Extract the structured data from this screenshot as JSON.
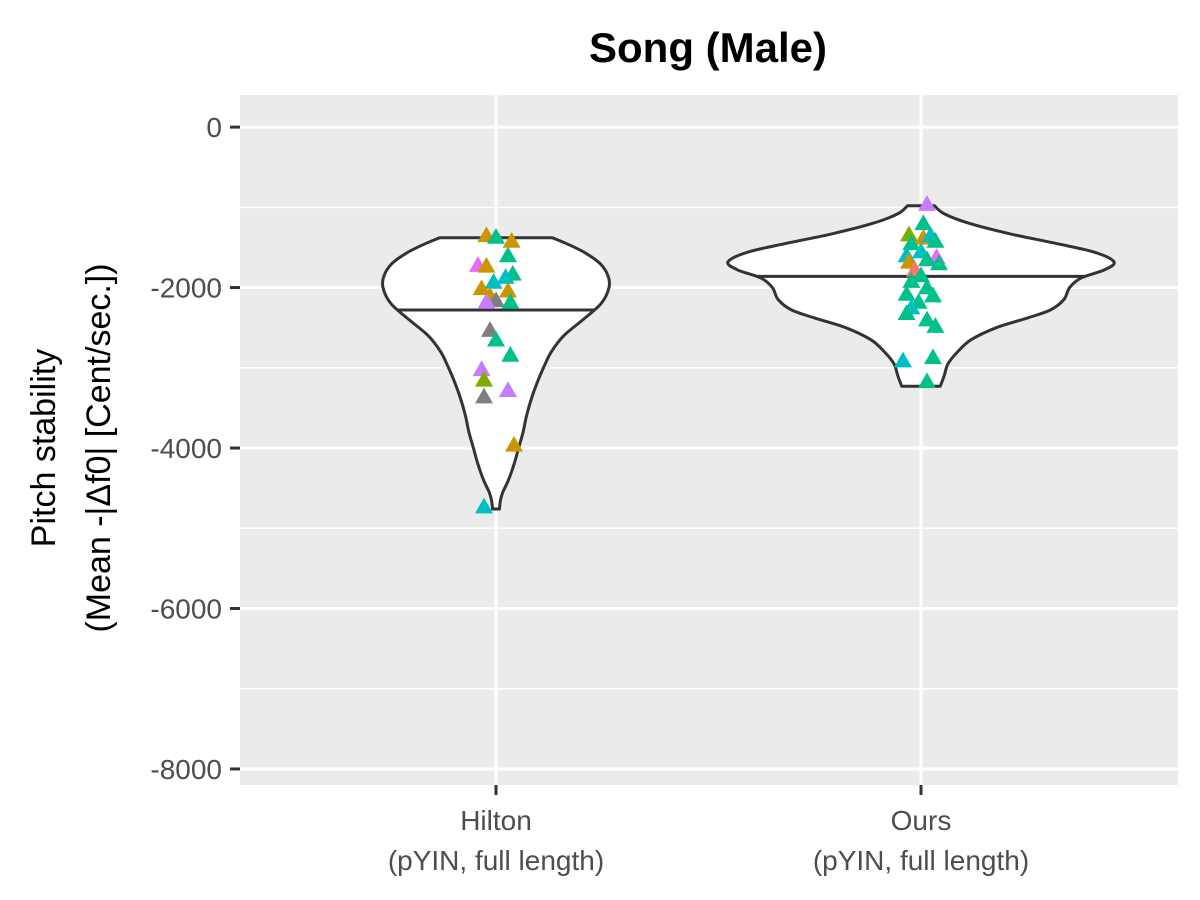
{
  "chart_data": {
    "type": "violin",
    "title": "Song (Male)",
    "ylabel_lines": [
      "Pitch stability",
      "(Mean -|Δf0| [Cent/sec.])"
    ],
    "xlabel": "",
    "ylim": [
      -8200,
      400
    ],
    "y_ticks": [
      0,
      -2000,
      -4000,
      -6000,
      -8000
    ],
    "y_tick_labels": [
      "0",
      "-2000",
      "-4000",
      "-6000",
      "-8000"
    ],
    "y_minor_gridlines": [
      -1000,
      -3000,
      -5000,
      -7000
    ],
    "grid": true,
    "legend": "none",
    "categories": [
      {
        "line1": "Hilton",
        "line2": "(pYIN, full length)"
      },
      {
        "line1": "Ours",
        "line2": "(pYIN, full length)"
      }
    ],
    "violins": [
      {
        "category_index": 0,
        "median": -2280,
        "ymin": -4760,
        "ymax": -1380,
        "density_profile": [
          {
            "y": -4760,
            "w": 0.03
          },
          {
            "y": -4650,
            "w": 0.04
          },
          {
            "y": -4550,
            "w": 0.06
          },
          {
            "y": -4400,
            "w": 0.11
          },
          {
            "y": -4200,
            "w": 0.16
          },
          {
            "y": -4000,
            "w": 0.2
          },
          {
            "y": -3800,
            "w": 0.24
          },
          {
            "y": -3600,
            "w": 0.27
          },
          {
            "y": -3400,
            "w": 0.31
          },
          {
            "y": -3200,
            "w": 0.36
          },
          {
            "y": -3000,
            "w": 0.42
          },
          {
            "y": -2800,
            "w": 0.49
          },
          {
            "y": -2600,
            "w": 0.6
          },
          {
            "y": -2400,
            "w": 0.77
          },
          {
            "y": -2200,
            "w": 0.93
          },
          {
            "y": -2000,
            "w": 1.0
          },
          {
            "y": -1850,
            "w": 0.99
          },
          {
            "y": -1700,
            "w": 0.92
          },
          {
            "y": -1560,
            "w": 0.78
          },
          {
            "y": -1450,
            "w": 0.62
          },
          {
            "y": -1380,
            "w": 0.5
          }
        ],
        "points": [
          {
            "x": -0.08,
            "y": -1350,
            "color": "#cc9600"
          },
          {
            "x": 0.0,
            "y": -1370,
            "color": "#00c08b"
          },
          {
            "x": 0.13,
            "y": -1420,
            "color": "#cc9600"
          },
          {
            "x": 0.1,
            "y": -1600,
            "color": "#00c08b"
          },
          {
            "x": -0.15,
            "y": -1720,
            "color": "#e76bf3"
          },
          {
            "x": -0.08,
            "y": -1730,
            "color": "#cc9600"
          },
          {
            "x": 0.14,
            "y": -1830,
            "color": "#00c08b"
          },
          {
            "x": 0.08,
            "y": -1870,
            "color": "#00bfc4"
          },
          {
            "x": -0.02,
            "y": -1930,
            "color": "#00bfc4"
          },
          {
            "x": -0.12,
            "y": -2010,
            "color": "#cc9600"
          },
          {
            "x": 0.1,
            "y": -2040,
            "color": "#cc9600"
          },
          {
            "x": -0.05,
            "y": -2100,
            "color": "#cc9600"
          },
          {
            "x": 0.0,
            "y": -2160,
            "color": "#7f7f7f"
          },
          {
            "x": -0.08,
            "y": -2180,
            "color": "#c77cff"
          },
          {
            "x": 0.12,
            "y": -2180,
            "color": "#00c08b"
          },
          {
            "x": -0.05,
            "y": -2530,
            "color": "#7f7f7f"
          },
          {
            "x": 0.0,
            "y": -2650,
            "color": "#00c08b"
          },
          {
            "x": 0.12,
            "y": -2840,
            "color": "#00c08b"
          },
          {
            "x": -0.12,
            "y": -3020,
            "color": "#c77cff"
          },
          {
            "x": -0.1,
            "y": -3150,
            "color": "#7cae00"
          },
          {
            "x": 0.1,
            "y": -3280,
            "color": "#c77cff"
          },
          {
            "x": -0.1,
            "y": -3360,
            "color": "#7f7f7f"
          },
          {
            "x": 0.15,
            "y": -3960,
            "color": "#cc9600"
          },
          {
            "x": -0.1,
            "y": -4730,
            "color": "#00bfc4"
          }
        ]
      },
      {
        "category_index": 1,
        "median": -1860,
        "ymin": -3230,
        "ymax": -980,
        "density_profile": [
          {
            "y": -3230,
            "w": 0.1
          },
          {
            "y": -3100,
            "w": 0.12
          },
          {
            "y": -2950,
            "w": 0.14
          },
          {
            "y": -2800,
            "w": 0.19
          },
          {
            "y": -2650,
            "w": 0.26
          },
          {
            "y": -2500,
            "w": 0.39
          },
          {
            "y": -2380,
            "w": 0.55
          },
          {
            "y": -2280,
            "w": 0.67
          },
          {
            "y": -2150,
            "w": 0.74
          },
          {
            "y": -2000,
            "w": 0.77
          },
          {
            "y": -1880,
            "w": 0.83
          },
          {
            "y": -1780,
            "w": 0.95
          },
          {
            "y": -1680,
            "w": 1.0
          },
          {
            "y": -1560,
            "w": 0.9
          },
          {
            "y": -1450,
            "w": 0.7
          },
          {
            "y": -1330,
            "w": 0.46
          },
          {
            "y": -1200,
            "w": 0.25
          },
          {
            "y": -1080,
            "w": 0.12
          },
          {
            "y": -980,
            "w": 0.07
          }
        ],
        "points": [
          {
            "x": 0.05,
            "y": -960,
            "color": "#c77cff"
          },
          {
            "x": 0.02,
            "y": -1200,
            "color": "#00c08b"
          },
          {
            "x": -0.1,
            "y": -1340,
            "color": "#7cae00"
          },
          {
            "x": 0.02,
            "y": -1380,
            "color": "#cc9600"
          },
          {
            "x": 0.08,
            "y": -1350,
            "color": "#00bfc4"
          },
          {
            "x": 0.12,
            "y": -1420,
            "color": "#00c08b"
          },
          {
            "x": -0.08,
            "y": -1450,
            "color": "#00c08b"
          },
          {
            "x": 0.0,
            "y": -1550,
            "color": "#00bfc4"
          },
          {
            "x": -0.12,
            "y": -1600,
            "color": "#00bfc4"
          },
          {
            "x": 0.13,
            "y": -1620,
            "color": "#e76bf3"
          },
          {
            "x": -0.1,
            "y": -1680,
            "color": "#cc9600"
          },
          {
            "x": 0.05,
            "y": -1650,
            "color": "#00c08b"
          },
          {
            "x": 0.15,
            "y": -1700,
            "color": "#00c08b"
          },
          {
            "x": -0.05,
            "y": -1780,
            "color": "#f8766d"
          },
          {
            "x": 0.0,
            "y": -1850,
            "color": "#00c08b"
          },
          {
            "x": -0.08,
            "y": -1920,
            "color": "#00c08b"
          },
          {
            "x": 0.05,
            "y": -2000,
            "color": "#00c08b"
          },
          {
            "x": -0.12,
            "y": -2080,
            "color": "#00c08b"
          },
          {
            "x": 0.1,
            "y": -2100,
            "color": "#00c08b"
          },
          {
            "x": -0.02,
            "y": -2180,
            "color": "#00c08b"
          },
          {
            "x": -0.08,
            "y": -2250,
            "color": "#00bfc4"
          },
          {
            "x": -0.12,
            "y": -2320,
            "color": "#00c08b"
          },
          {
            "x": 0.05,
            "y": -2400,
            "color": "#00c08b"
          },
          {
            "x": 0.12,
            "y": -2480,
            "color": "#00c08b"
          },
          {
            "x": 0.1,
            "y": -2870,
            "color": "#00c08b"
          },
          {
            "x": -0.15,
            "y": -2910,
            "color": "#00bfc4"
          },
          {
            "x": 0.05,
            "y": -3170,
            "color": "#00c08b"
          }
        ]
      }
    ]
  }
}
